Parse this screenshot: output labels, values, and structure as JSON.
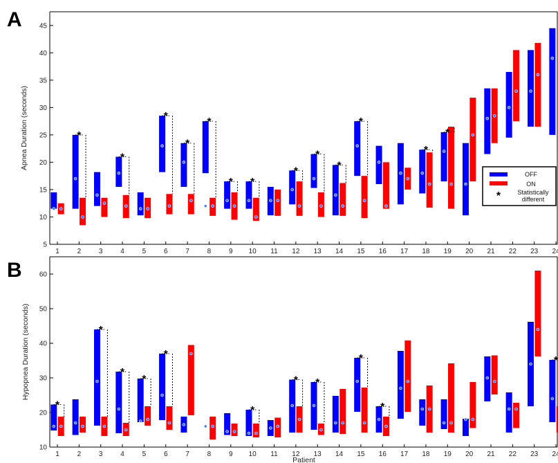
{
  "chart_data": [
    {
      "type": "bar",
      "panel": "A",
      "ylabel": "Apnea Duration (seconds)",
      "xlabel": "",
      "ylim": [
        5,
        47.5
      ],
      "yticks": [
        5,
        10,
        15,
        20,
        25,
        30,
        35,
        40,
        45
      ],
      "categories": [
        "1",
        "2",
        "3",
        "4",
        "5",
        "6",
        "7",
        "8",
        "9",
        "10",
        "11",
        "12",
        "13",
        "14",
        "15",
        "16",
        "17",
        "18",
        "19",
        "20",
        "21",
        "22",
        "23",
        "24"
      ],
      "series": [
        {
          "name": "OFF",
          "color": "#0000ff",
          "ranges": [
            [
              11.5,
              14.5
            ],
            [
              11.5,
              25
            ],
            [
              12,
              18.2
            ],
            [
              15.5,
              21
            ],
            [
              10.3,
              14.5
            ],
            [
              18.2,
              28.5
            ],
            [
              15.5,
              23.5
            ],
            [
              18,
              27.5
            ],
            [
              11.5,
              16.5
            ],
            [
              11.5,
              16.5
            ],
            [
              10.3,
              15.5
            ],
            [
              12.3,
              18.5
            ],
            [
              15.3,
              21.5
            ],
            [
              10.3,
              19.5
            ],
            [
              17.5,
              27.5
            ],
            [
              16,
              23
            ],
            [
              12.3,
              23.5
            ],
            [
              14.3,
              22.3
            ],
            [
              16.5,
              25.5
            ],
            [
              10.3,
              23.5
            ],
            [
              21.5,
              33.5
            ],
            [
              24.5,
              36.5
            ],
            [
              26.5,
              40.5
            ],
            [
              25,
              44.5
            ]
          ],
          "medians": [
            11.5,
            17,
            14,
            18,
            11.5,
            23,
            20,
            12,
            13,
            13,
            13,
            15,
            17,
            14,
            23,
            20,
            18,
            18,
            22,
            16,
            28,
            30,
            33,
            39
          ]
        },
        {
          "name": "ON",
          "color": "#ff0000",
          "ranges": [
            [
              10.5,
              12.5
            ],
            [
              8.5,
              13.5
            ],
            [
              10,
              13.5
            ],
            [
              9.8,
              14
            ],
            [
              9.8,
              13.5
            ],
            [
              10.5,
              14.2
            ],
            [
              10.5,
              14.2
            ],
            [
              10.2,
              13.5
            ],
            [
              9.5,
              14.5
            ],
            [
              9.3,
              13.5
            ],
            [
              10.2,
              15
            ],
            [
              10.2,
              16.5
            ],
            [
              10,
              14.5
            ],
            [
              10.2,
              16.2
            ],
            [
              9.8,
              17.5
            ],
            [
              11.5,
              20
            ],
            [
              15,
              19
            ],
            [
              11.7,
              21.8
            ],
            [
              11.5,
              26.5
            ],
            [
              16.5,
              31.8
            ],
            [
              23.5,
              33.5
            ],
            [
              27.5,
              40.5
            ],
            [
              26.5,
              41.8
            ],
            null
          ],
          "medians": [
            11.5,
            10,
            12.5,
            12,
            11.5,
            12,
            13,
            12,
            12,
            10,
            13,
            12,
            12,
            12,
            13,
            12,
            17,
            16,
            16,
            25,
            28.5,
            33,
            36,
            null
          ]
        }
      ],
      "significant": [
        "2",
        "4",
        "6",
        "7",
        "8",
        "9",
        "10",
        "12",
        "13",
        "14",
        "15",
        "18",
        "19"
      ]
    },
    {
      "type": "bar",
      "panel": "B",
      "ylabel": "Hypopnea Duration (seconds)",
      "xlabel": "Patient",
      "ylim": [
        10,
        65
      ],
      "yticks": [
        10,
        20,
        30,
        40,
        50,
        60
      ],
      "categories": [
        "1",
        "2",
        "3",
        "4",
        "5",
        "6",
        "7",
        "8",
        "9",
        "10",
        "11",
        "12",
        "13",
        "14",
        "15",
        "16",
        "17",
        "18",
        "19",
        "20",
        "21",
        "22",
        "23",
        "24"
      ],
      "series": [
        {
          "name": "OFF",
          "color": "#0000ff",
          "ranges": [
            [
              14.8,
              22.3
            ],
            [
              13.5,
              23.8
            ],
            [
              16.2,
              44
            ],
            [
              14,
              31.8
            ],
            [
              17.2,
              29.8
            ],
            [
              17.8,
              37
            ],
            [
              14.2,
              18.8
            ],
            null,
            [
              13.5,
              19.8
            ],
            [
              13.2,
              20.8
            ],
            [
              13.2,
              17.8
            ],
            [
              14.2,
              29.5
            ],
            [
              15,
              28.8
            ],
            [
              14.2,
              24.8
            ],
            [
              20.2,
              35.8
            ],
            [
              14.2,
              21.8
            ],
            [
              18.2,
              37.8
            ],
            [
              16.2,
              23.8
            ],
            [
              15.2,
              23.8
            ],
            [
              13.2,
              18.2
            ],
            [
              23.2,
              36.2
            ],
            [
              14.2,
              25.8
            ],
            [
              21.8,
              46.2
            ],
            [
              17.2,
              35.2
            ]
          ],
          "medians": [
            16,
            17,
            29,
            21,
            17.5,
            25,
            16.5,
            16,
            14.5,
            14,
            15.5,
            22,
            22,
            17,
            29,
            18,
            27,
            21,
            17,
            18,
            30,
            21,
            34,
            24
          ]
        },
        {
          "name": "ON",
          "color": "#ff0000",
          "ranges": [
            [
              13.2,
              18.8
            ],
            [
              14.2,
              18.8
            ],
            [
              13.2,
              18.8
            ],
            [
              13.2,
              17
            ],
            [
              16.2,
              21.8
            ],
            [
              15,
              21.8
            ],
            [
              19.2,
              39.5
            ],
            [
              12.2,
              18.8
            ],
            [
              13.2,
              16.8
            ],
            [
              12.8,
              16.8
            ],
            [
              12.8,
              18.5
            ],
            [
              14.2,
              21.8
            ],
            [
              13.5,
              16.8
            ],
            [
              13.8,
              26.8
            ],
            [
              14.2,
              27.2
            ],
            [
              13.2,
              18.8
            ],
            [
              20.2,
              40.8
            ],
            [
              14.2,
              27.8
            ],
            [
              14.2,
              34.2
            ],
            [
              15.5,
              28.8
            ],
            [
              25.2,
              36.5
            ],
            [
              15.5,
              22.8
            ],
            [
              36.2,
              61
            ],
            [
              14.2,
              21.8
            ]
          ],
          "medians": [
            16,
            16,
            16,
            15,
            18,
            17,
            37,
            16,
            14.5,
            14,
            16,
            18,
            15,
            17,
            17,
            16,
            29,
            21,
            17,
            18,
            29,
            21,
            44,
            18
          ]
        }
      ],
      "significant": [
        "1",
        "3",
        "4",
        "5",
        "6",
        "10",
        "12",
        "13",
        "15",
        "16",
        "24"
      ]
    }
  ],
  "legend": {
    "items": [
      {
        "label": "OFF",
        "color": "#0000ff"
      },
      {
        "label": "ON",
        "color": "#ff0000"
      },
      {
        "label": "Statistically different",
        "marker": "*"
      }
    ],
    "placement": "right-middle of panel A"
  }
}
